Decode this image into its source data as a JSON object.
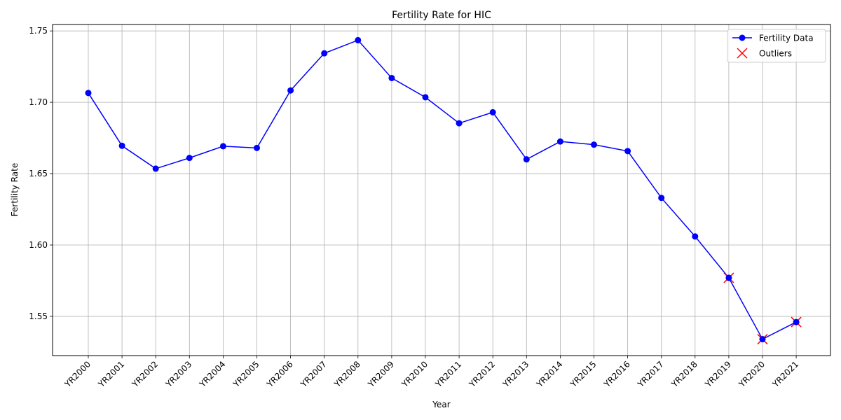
{
  "chart_data": {
    "type": "line",
    "title": "Fertility Rate for HIC",
    "xlabel": "Year",
    "ylabel": "Fertility Rate",
    "ylim": [
      1.5225,
      1.7545
    ],
    "yticks": [
      1.55,
      1.6,
      1.65,
      1.7,
      1.75
    ],
    "ytick_labels": [
      "1.55",
      "1.60",
      "1.65",
      "1.70",
      "1.75"
    ],
    "grid": true,
    "legend_position": "top-right",
    "categories": [
      "YR2000",
      "YR2001",
      "YR2002",
      "YR2003",
      "YR2004",
      "YR2005",
      "YR2006",
      "YR2007",
      "YR2008",
      "YR2009",
      "YR2010",
      "YR2011",
      "YR2012",
      "YR2013",
      "YR2014",
      "YR2015",
      "YR2016",
      "YR2017",
      "YR2018",
      "YR2019",
      "YR2020",
      "YR2021"
    ],
    "series": [
      {
        "name": "Fertility Data",
        "color": "#0000ff",
        "marker": "circle",
        "values": [
          1.7065,
          1.6695,
          1.6535,
          1.661,
          1.6692,
          1.668,
          1.7083,
          1.7343,
          1.7435,
          1.717,
          1.7035,
          1.6853,
          1.693,
          1.66,
          1.6725,
          1.6703,
          1.6658,
          1.633,
          1.606,
          1.577,
          1.534,
          1.546
        ]
      }
    ],
    "outliers": {
      "name": "Outliers",
      "color": "#ff0000",
      "marker": "x",
      "categories": [
        "YR2019",
        "YR2020",
        "YR2021"
      ],
      "values": [
        1.577,
        1.534,
        1.546
      ]
    }
  }
}
